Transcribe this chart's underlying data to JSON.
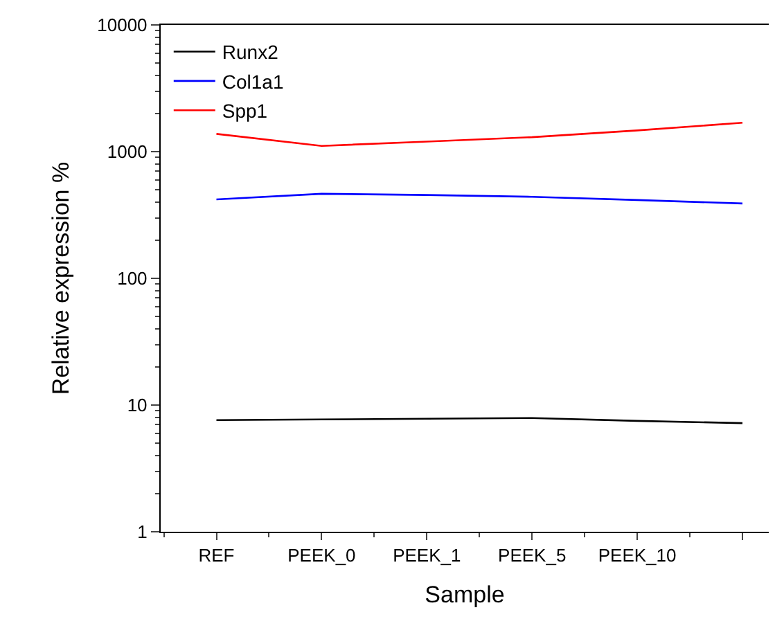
{
  "chart_data": {
    "type": "line",
    "xlabel": "Sample",
    "ylabel": "Relative expression %",
    "categories": [
      "REF",
      "PEEK_0",
      "PEEK_1",
      "PEEK_5",
      "PEEK_10",
      null
    ],
    "series": [
      {
        "name": "Runx2",
        "color": "#000000",
        "values": [
          7.6,
          7.7,
          7.8,
          7.9,
          7.5,
          7.2
        ]
      },
      {
        "name": "Col1a1",
        "color": "#0000ff",
        "values": [
          420,
          465,
          455,
          440,
          415,
          390
        ]
      },
      {
        "name": "Spp1",
        "color": "#ff0000",
        "values": [
          1380,
          1110,
          1200,
          1300,
          1470,
          1690
        ]
      }
    ],
    "log": "y",
    "ylim": [
      1,
      10000
    ],
    "yticks": [
      1,
      10,
      100,
      1000,
      10000
    ],
    "legend": "top left",
    "marker": "none",
    "line_style": "solid"
  }
}
